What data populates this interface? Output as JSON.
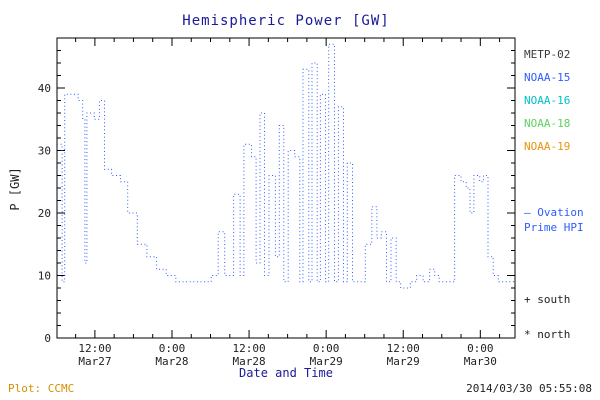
{
  "title": "Hemispheric Power [GW]",
  "footer": {
    "plot_label": "Plot: CCMC",
    "timestamp": "2014/03/30 05:55:08"
  },
  "legend": {
    "satellites": [
      {
        "label": "METP-02",
        "color": "#3a3a3a"
      },
      {
        "label": "NOAA-15",
        "color": "#2e5cff"
      },
      {
        "label": "NOAA-16",
        "color": "#00c0cc"
      },
      {
        "label": "NOAA-18",
        "color": "#5fd05f"
      },
      {
        "label": "NOAA-19",
        "color": "#e8940a"
      }
    ],
    "ovation": {
      "line1": "– Ovation",
      "line2": "Prime HPI",
      "color": "#2e5cff"
    },
    "markers": [
      {
        "label": "+ south"
      },
      {
        "label": "* north"
      }
    ]
  },
  "chart_data": {
    "type": "line",
    "title": "Hemispheric Power [GW]",
    "xlabel": "Date and Time",
    "ylabel": "P [GW]",
    "xlim_hours_from_mar27_00": [
      6.1,
      77.4
    ],
    "ylim": [
      0,
      48
    ],
    "y_ticks": [
      0,
      10,
      20,
      30,
      40
    ],
    "x_ticks": [
      {
        "hours": 12,
        "time": "12:00",
        "date": "Mar27"
      },
      {
        "hours": 24,
        "time": "0:00",
        "date": "Mar28"
      },
      {
        "hours": 36,
        "time": "12:00",
        "date": "Mar28"
      },
      {
        "hours": 48,
        "time": "0:00",
        "date": "Mar29"
      },
      {
        "hours": 60,
        "time": "12:00",
        "date": "Mar29"
      },
      {
        "hours": 72,
        "time": "0:00",
        "date": "Mar30"
      }
    ],
    "grid": false,
    "legend_position": "right",
    "series": [
      {
        "name": "NOAA-15 Ovation Prime HPI",
        "color": "#2e5cff",
        "style": "dotted-step",
        "points": [
          [
            6.1,
            31
          ],
          [
            6.9,
            9
          ],
          [
            7.3,
            39
          ],
          [
            9.4,
            38
          ],
          [
            10.1,
            35
          ],
          [
            10.45,
            12
          ],
          [
            10.75,
            36
          ],
          [
            11.9,
            35
          ],
          [
            12.7,
            38
          ],
          [
            13.5,
            27
          ],
          [
            14.6,
            26
          ],
          [
            16.0,
            25
          ],
          [
            17.1,
            20
          ],
          [
            18.6,
            15
          ],
          [
            20.1,
            13
          ],
          [
            21.6,
            11
          ],
          [
            23.1,
            10
          ],
          [
            24.6,
            9
          ],
          [
            30.1,
            10
          ],
          [
            31.2,
            17
          ],
          [
            32.2,
            10
          ],
          [
            33.6,
            23
          ],
          [
            34.6,
            10
          ],
          [
            35.2,
            31
          ],
          [
            36.4,
            29
          ],
          [
            37.1,
            12
          ],
          [
            37.7,
            36
          ],
          [
            38.4,
            10
          ],
          [
            39.1,
            26
          ],
          [
            40.1,
            13
          ],
          [
            40.7,
            34
          ],
          [
            41.4,
            9
          ],
          [
            42.1,
            30
          ],
          [
            43.1,
            29
          ],
          [
            43.9,
            9
          ],
          [
            44.4,
            43
          ],
          [
            45.3,
            9
          ],
          [
            45.8,
            44
          ],
          [
            46.6,
            9
          ],
          [
            47.1,
            39
          ],
          [
            47.9,
            9
          ],
          [
            48.4,
            47
          ],
          [
            49.3,
            9
          ],
          [
            49.9,
            37
          ],
          [
            50.7,
            9
          ],
          [
            51.3,
            28
          ],
          [
            52.1,
            9
          ],
          [
            53.1,
            9
          ],
          [
            54.1,
            15
          ],
          [
            55.1,
            21
          ],
          [
            55.9,
            16
          ],
          [
            56.6,
            17
          ],
          [
            57.4,
            9
          ],
          [
            58.1,
            16
          ],
          [
            58.9,
            9
          ],
          [
            59.6,
            8
          ],
          [
            61.1,
            9
          ],
          [
            62.1,
            10
          ],
          [
            63.1,
            9
          ],
          [
            64.1,
            11
          ],
          [
            64.9,
            10
          ],
          [
            65.6,
            9
          ],
          [
            68.0,
            26
          ],
          [
            69.0,
            25
          ],
          [
            69.8,
            24
          ],
          [
            70.4,
            20
          ],
          [
            71.0,
            26
          ],
          [
            71.9,
            25
          ],
          [
            72.5,
            26
          ],
          [
            73.2,
            13
          ],
          [
            74.0,
            10
          ],
          [
            74.8,
            9
          ]
        ]
      }
    ]
  }
}
